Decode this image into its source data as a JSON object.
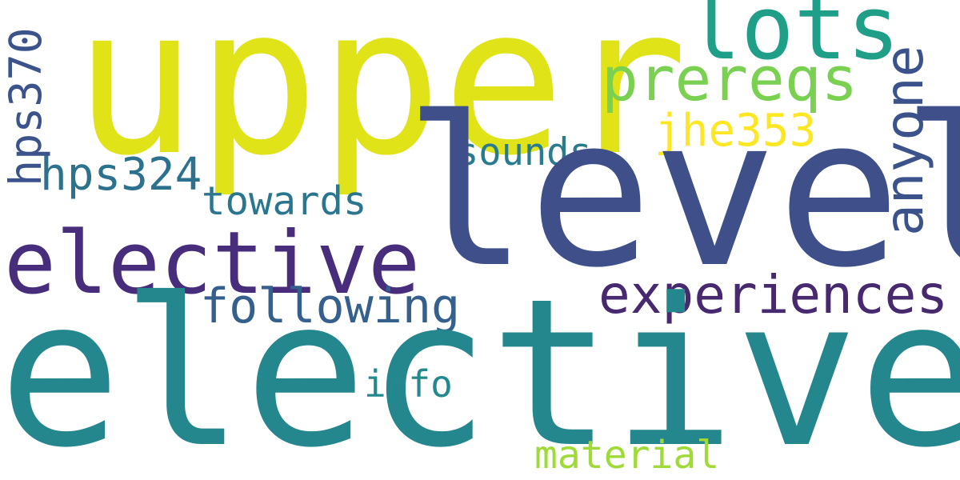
{
  "words": {
    "upper": {
      "text": "upper",
      "color": "#dfe318"
    },
    "level": {
      "text": "level",
      "color": "#3e4f8a"
    },
    "electives": {
      "text": "electives",
      "color": "#25878e"
    },
    "elective": {
      "text": "elective",
      "color": "#472d7b"
    },
    "lots": {
      "text": "lots",
      "color": "#1f9f88"
    },
    "prereqs": {
      "text": "prereqs",
      "color": "#7ad151"
    },
    "experiences": {
      "text": "experiences",
      "color": "#46296e"
    },
    "following": {
      "text": "following",
      "color": "#355f8d"
    },
    "jhe353": {
      "text": "jhe353",
      "color": "#fde725"
    },
    "hps324": {
      "text": "hps324",
      "color": "#2c718e"
    },
    "sounds": {
      "text": "sounds",
      "color": "#297b8e"
    },
    "towards": {
      "text": "towards",
      "color": "#2a768e"
    },
    "info": {
      "text": "info",
      "color": "#23898e"
    },
    "material": {
      "text": "material",
      "color": "#a0da39"
    },
    "hps370": {
      "text": "hps370",
      "color": "#3b528b"
    },
    "anyone": {
      "text": "anyone",
      "color": "#3b528b"
    }
  }
}
